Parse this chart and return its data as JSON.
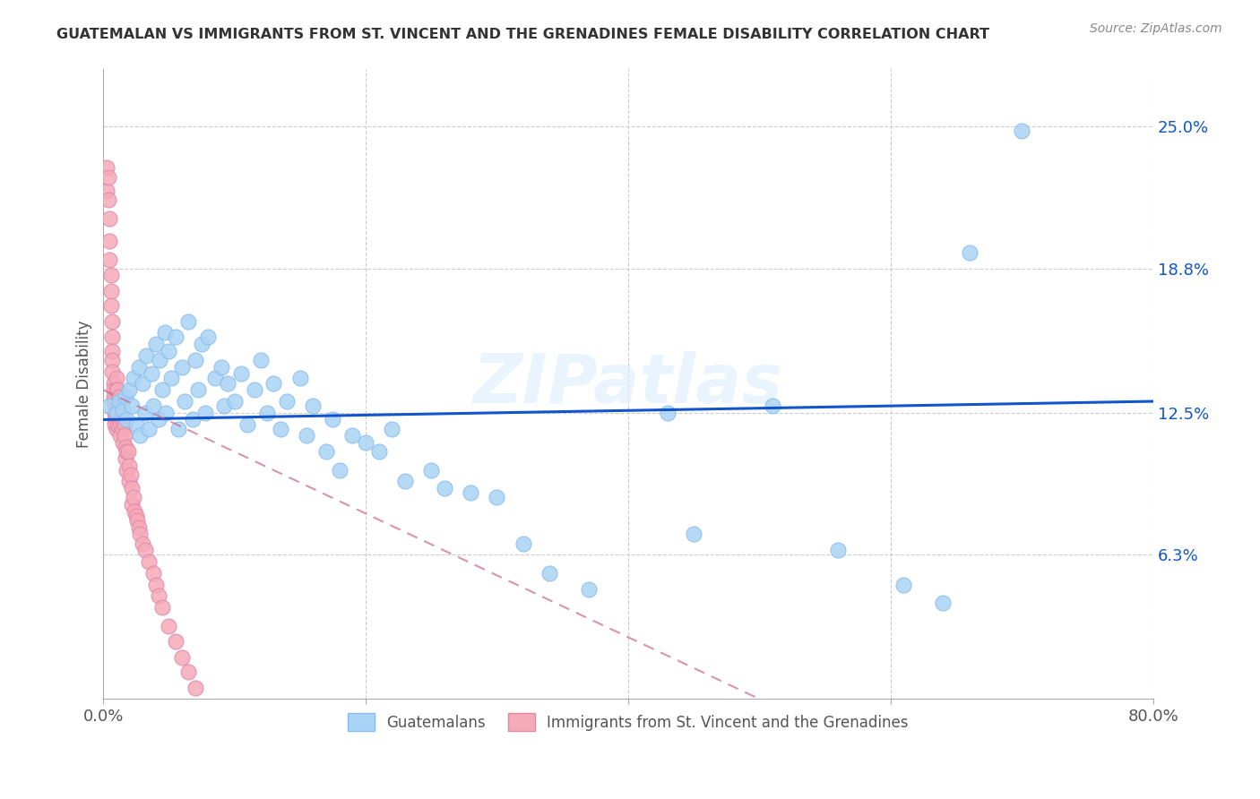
{
  "title": "GUATEMALAN VS IMMIGRANTS FROM ST. VINCENT AND THE GRENADINES FEMALE DISABILITY CORRELATION CHART",
  "source": "Source: ZipAtlas.com",
  "ylabel": "Female Disability",
  "ytick_labels": [
    "25.0%",
    "18.8%",
    "12.5%",
    "6.3%"
  ],
  "ytick_values": [
    0.25,
    0.188,
    0.125,
    0.063
  ],
  "xlim": [
    0.0,
    0.8
  ],
  "ylim": [
    0.0,
    0.275
  ],
  "blue_color": "#aad4f5",
  "pink_color": "#f5aab8",
  "line_blue_color": "#1155cc",
  "line_pink_color": "#cc6688",
  "watermark": "ZIPatlas",
  "blue_x": [
    0.005,
    0.01,
    0.012,
    0.015,
    0.017,
    0.018,
    0.02,
    0.022,
    0.023,
    0.025,
    0.027,
    0.028,
    0.03,
    0.032,
    0.033,
    0.035,
    0.037,
    0.038,
    0.04,
    0.042,
    0.043,
    0.045,
    0.047,
    0.048,
    0.05,
    0.052,
    0.055,
    0.057,
    0.06,
    0.062,
    0.065,
    0.068,
    0.07,
    0.072,
    0.075,
    0.078,
    0.08,
    0.085,
    0.09,
    0.092,
    0.095,
    0.1,
    0.105,
    0.11,
    0.115,
    0.12,
    0.125,
    0.13,
    0.135,
    0.14,
    0.15,
    0.155,
    0.16,
    0.17,
    0.175,
    0.18,
    0.19,
    0.2,
    0.21,
    0.22,
    0.23,
    0.25,
    0.26,
    0.28,
    0.3,
    0.32,
    0.34,
    0.37,
    0.43,
    0.45,
    0.51,
    0.56,
    0.61,
    0.64,
    0.66,
    0.7
  ],
  "blue_y": [
    0.128,
    0.125,
    0.13,
    0.126,
    0.132,
    0.122,
    0.135,
    0.128,
    0.14,
    0.12,
    0.145,
    0.115,
    0.138,
    0.125,
    0.15,
    0.118,
    0.142,
    0.128,
    0.155,
    0.122,
    0.148,
    0.135,
    0.16,
    0.125,
    0.152,
    0.14,
    0.158,
    0.118,
    0.145,
    0.13,
    0.165,
    0.122,
    0.148,
    0.135,
    0.155,
    0.125,
    0.158,
    0.14,
    0.145,
    0.128,
    0.138,
    0.13,
    0.142,
    0.12,
    0.135,
    0.148,
    0.125,
    0.138,
    0.118,
    0.13,
    0.14,
    0.115,
    0.128,
    0.108,
    0.122,
    0.1,
    0.115,
    0.112,
    0.108,
    0.118,
    0.095,
    0.1,
    0.092,
    0.09,
    0.088,
    0.068,
    0.055,
    0.048,
    0.125,
    0.072,
    0.128,
    0.065,
    0.05,
    0.042,
    0.195,
    0.248
  ],
  "pink_x": [
    0.003,
    0.003,
    0.004,
    0.004,
    0.005,
    0.005,
    0.005,
    0.006,
    0.006,
    0.006,
    0.007,
    0.007,
    0.007,
    0.007,
    0.007,
    0.008,
    0.008,
    0.008,
    0.008,
    0.009,
    0.009,
    0.009,
    0.009,
    0.01,
    0.01,
    0.01,
    0.01,
    0.01,
    0.011,
    0.011,
    0.011,
    0.011,
    0.012,
    0.012,
    0.012,
    0.013,
    0.013,
    0.013,
    0.014,
    0.014,
    0.015,
    0.015,
    0.016,
    0.016,
    0.017,
    0.017,
    0.018,
    0.018,
    0.019,
    0.02,
    0.02,
    0.021,
    0.022,
    0.022,
    0.023,
    0.024,
    0.025,
    0.026,
    0.027,
    0.028,
    0.03,
    0.032,
    0.035,
    0.038,
    0.04,
    0.042,
    0.045,
    0.05,
    0.055,
    0.06,
    0.065,
    0.07
  ],
  "pink_y": [
    0.232,
    0.222,
    0.228,
    0.218,
    0.21,
    0.2,
    0.192,
    0.185,
    0.178,
    0.172,
    0.165,
    0.158,
    0.152,
    0.148,
    0.143,
    0.138,
    0.135,
    0.132,
    0.13,
    0.128,
    0.125,
    0.122,
    0.12,
    0.14,
    0.135,
    0.128,
    0.125,
    0.118,
    0.135,
    0.13,
    0.125,
    0.12,
    0.132,
    0.128,
    0.122,
    0.125,
    0.12,
    0.115,
    0.128,
    0.122,
    0.118,
    0.112,
    0.12,
    0.115,
    0.11,
    0.105,
    0.108,
    0.1,
    0.108,
    0.102,
    0.095,
    0.098,
    0.092,
    0.085,
    0.088,
    0.082,
    0.08,
    0.078,
    0.075,
    0.072,
    0.068,
    0.065,
    0.06,
    0.055,
    0.05,
    0.045,
    0.04,
    0.032,
    0.025,
    0.018,
    0.012,
    0.005
  ],
  "grid_color": "#cccccc",
  "background_color": "#ffffff",
  "blue_line_x": [
    0.0,
    0.8
  ],
  "blue_line_y": [
    0.122,
    0.13
  ],
  "pink_line_x": [
    0.0,
    0.5
  ],
  "pink_line_y": [
    0.135,
    0.0
  ]
}
